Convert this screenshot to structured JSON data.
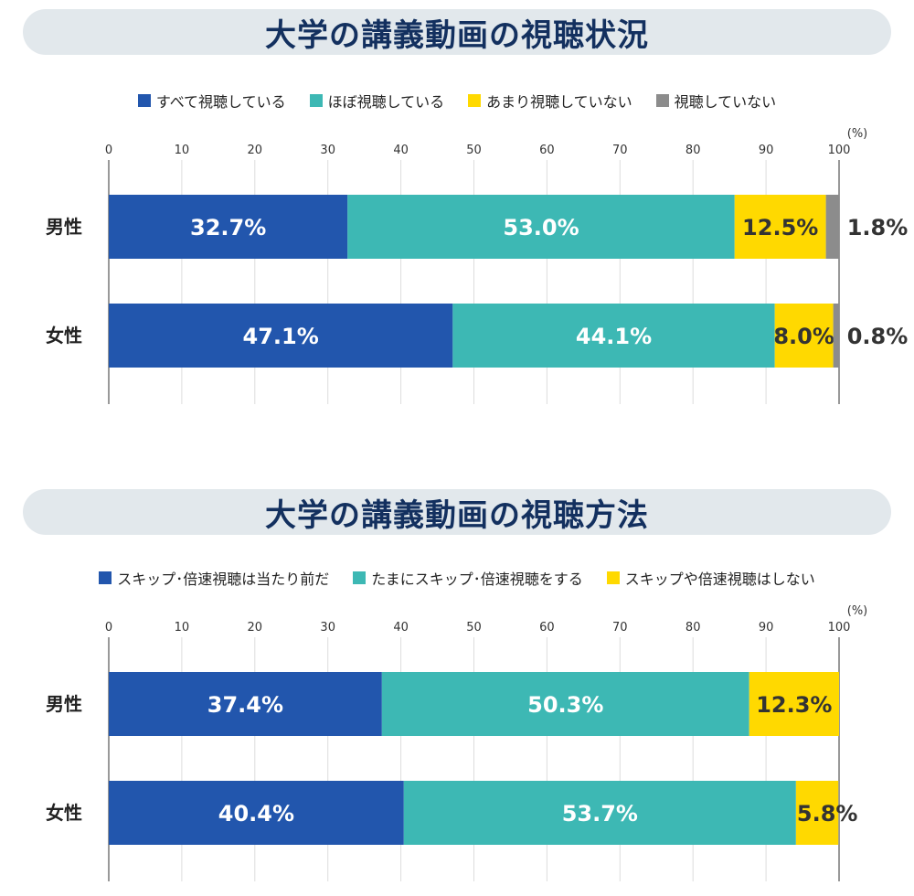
{
  "chart_data": [
    {
      "type": "bar",
      "orientation": "horizontal-stacked",
      "title": "大学の講義動画の視聴状況",
      "unit_label": "(%)",
      "xlim": [
        0,
        100
      ],
      "ticks": [
        0,
        10,
        20,
        30,
        40,
        50,
        60,
        70,
        80,
        90,
        100
      ],
      "grid": true,
      "legend_position": "top",
      "categories": [
        "男性",
        "女性"
      ],
      "series": [
        {
          "name": "すべて視聴している",
          "color": "#2256ad",
          "values": [
            32.7,
            47.1
          ],
          "labels": [
            "32.7%",
            "47.1%"
          ]
        },
        {
          "name": "ほぼ視聴している",
          "color": "#3db8b4",
          "values": [
            53.0,
            44.1
          ],
          "labels": [
            "53.0%",
            "44.1%"
          ]
        },
        {
          "name": "あまり視聴していない",
          "color": "#ffd900",
          "values": [
            12.5,
            8.0
          ],
          "labels": [
            "12.5%",
            "8.0%"
          ]
        },
        {
          "name": "視聴していない",
          "color": "#8c8c8c",
          "values": [
            1.8,
            0.8
          ],
          "labels": [
            "1.8%",
            "0.8%"
          ]
        }
      ]
    },
    {
      "type": "bar",
      "orientation": "horizontal-stacked",
      "title": "大学の講義動画の視聴方法",
      "unit_label": "(%)",
      "xlim": [
        0,
        100
      ],
      "ticks": [
        0,
        10,
        20,
        30,
        40,
        50,
        60,
        70,
        80,
        90,
        100
      ],
      "grid": true,
      "legend_position": "top",
      "categories": [
        "男性",
        "女性"
      ],
      "series": [
        {
          "name": "スキップ･倍速視聴は当たり前だ",
          "color": "#2256ad",
          "values": [
            37.4,
            40.4
          ],
          "labels": [
            "37.4%",
            "40.4%"
          ]
        },
        {
          "name": "たまにスキップ･倍速視聴をする",
          "color": "#3db8b4",
          "values": [
            50.3,
            53.7
          ],
          "labels": [
            "50.3%",
            "53.7%"
          ]
        },
        {
          "name": "スキップや倍速視聴はしない",
          "color": "#ffd900",
          "values": [
            12.3,
            5.8
          ],
          "labels": [
            "12.3%",
            "5.8%"
          ]
        }
      ]
    }
  ]
}
